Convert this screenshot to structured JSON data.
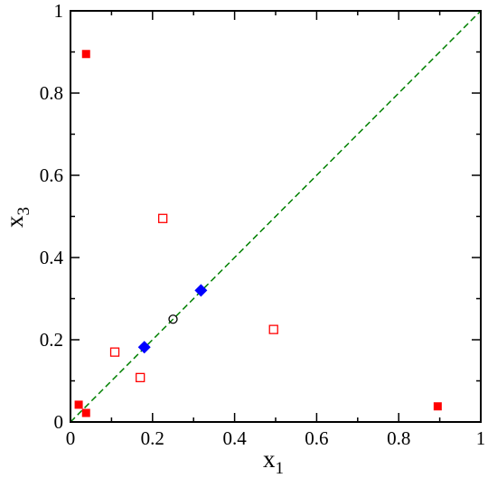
{
  "chart_data": {
    "type": "scatter",
    "xlabel": "x",
    "xlabel_sub": "1",
    "ylabel": "x",
    "ylabel_sub": "3",
    "xlim": [
      0,
      1
    ],
    "ylim": [
      0,
      1
    ],
    "xticks": [
      0,
      0.2,
      0.4,
      0.6,
      0.8,
      1
    ],
    "yticks": [
      0,
      0.2,
      0.4,
      0.6,
      0.8,
      1
    ],
    "xtick_labels": [
      "0",
      "0.2",
      "0.4",
      "0.6",
      "0.8",
      "1"
    ],
    "ytick_labels": [
      "0",
      "0.2",
      "0.4",
      "0.6",
      "0.8",
      "1"
    ],
    "grid": false,
    "reference_line": {
      "x": [
        0,
        1
      ],
      "y": [
        0,
        1
      ],
      "style": "dashed",
      "color": "#008000"
    },
    "series": [
      {
        "marker": "filled-square",
        "color": "#ff0000",
        "points": [
          [
            0.038,
            0.895
          ],
          [
            0.02,
            0.042
          ],
          [
            0.038,
            0.022
          ],
          [
            0.895,
            0.038
          ]
        ]
      },
      {
        "marker": "open-square",
        "color": "#ff0000",
        "points": [
          [
            0.225,
            0.495
          ],
          [
            0.495,
            0.225
          ],
          [
            0.108,
            0.17
          ],
          [
            0.17,
            0.108
          ]
        ]
      },
      {
        "marker": "filled-diamond",
        "color": "#0000ff",
        "points": [
          [
            0.18,
            0.182
          ],
          [
            0.318,
            0.32
          ]
        ]
      },
      {
        "marker": "open-circle",
        "color": "#000000",
        "points": [
          [
            0.25,
            0.25
          ]
        ]
      }
    ]
  }
}
